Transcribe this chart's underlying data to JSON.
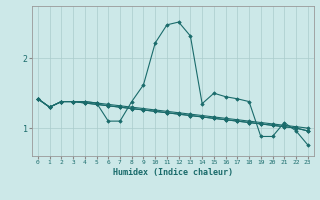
{
  "title": "",
  "xlabel": "Humidex (Indice chaleur)",
  "bg_color": "#cce8e8",
  "grid_color": "#aacccc",
  "line_color": "#1a6b6b",
  "xlim": [
    -0.5,
    23.5
  ],
  "ylim": [
    0.6,
    2.75
  ],
  "yticks": [
    1,
    2
  ],
  "xticks": [
    0,
    1,
    2,
    3,
    4,
    5,
    6,
    7,
    8,
    9,
    10,
    11,
    12,
    13,
    14,
    15,
    16,
    17,
    18,
    19,
    20,
    21,
    22,
    23
  ],
  "series": [
    [
      1.42,
      1.3,
      1.38,
      1.38,
      1.38,
      1.36,
      1.1,
      1.1,
      1.38,
      1.62,
      2.22,
      2.48,
      2.52,
      2.32,
      1.35,
      1.5,
      1.45,
      1.42,
      1.38,
      0.88,
      0.88,
      1.08,
      0.96,
      0.76
    ],
    [
      1.42,
      1.3,
      1.38,
      1.38,
      1.38,
      1.36,
      1.34,
      1.32,
      1.3,
      1.28,
      1.26,
      1.24,
      1.22,
      1.2,
      1.18,
      1.16,
      1.14,
      1.12,
      1.1,
      1.08,
      1.06,
      1.04,
      1.02,
      1.0
    ],
    [
      1.42,
      1.3,
      1.38,
      1.38,
      1.36,
      1.34,
      1.32,
      1.3,
      1.28,
      1.26,
      1.24,
      1.22,
      1.2,
      1.18,
      1.16,
      1.14,
      1.12,
      1.1,
      1.08,
      1.06,
      1.04,
      1.02,
      1.0,
      0.96
    ],
    [
      1.42,
      1.3,
      1.38,
      1.38,
      1.36,
      1.34,
      1.32,
      1.3,
      1.28,
      1.26,
      1.24,
      1.22,
      1.2,
      1.18,
      1.16,
      1.14,
      1.12,
      1.1,
      1.08,
      1.06,
      1.04,
      1.02,
      1.0,
      0.96
    ]
  ]
}
